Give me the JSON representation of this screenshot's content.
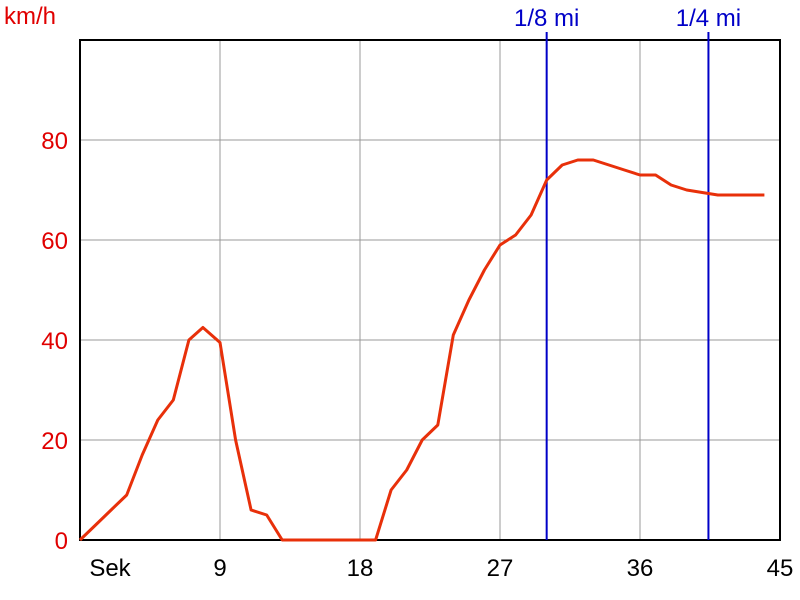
{
  "chart_data": {
    "type": "line",
    "ylabel": "km/h",
    "xlabel": "Sek",
    "xlim": [
      0,
      45
    ],
    "ylim": [
      0,
      100
    ],
    "x_ticks": [
      9,
      18,
      27,
      36,
      45
    ],
    "y_ticks": [
      0,
      20,
      40,
      60,
      80
    ],
    "grid": true,
    "colors": {
      "line": "#e8300a",
      "markers": "#0000c8",
      "y_text": "#e00000",
      "grid": "#999999"
    },
    "markers": [
      {
        "label": "1/8 mi",
        "x": 30.0
      },
      {
        "label": "1/4 mi",
        "x": 40.4
      }
    ],
    "series": [
      {
        "x": [
          0,
          1,
          2,
          3,
          4,
          5,
          6,
          7,
          7.9,
          9,
          10,
          11,
          12,
          13,
          14,
          15,
          16,
          17,
          18,
          19,
          20,
          21,
          22,
          23,
          24,
          25,
          26,
          27,
          28,
          29,
          30,
          31,
          32,
          33,
          34,
          35,
          36,
          37,
          38,
          39,
          40,
          41,
          42,
          43,
          44
        ],
        "y": [
          0,
          3,
          6,
          9,
          17,
          24,
          28,
          40,
          42.5,
          39.5,
          20,
          6,
          5,
          0,
          0,
          0,
          0,
          0,
          0,
          0,
          10,
          14,
          20,
          23,
          41,
          48,
          54,
          59,
          61,
          65,
          72,
          75,
          76,
          76,
          75,
          74,
          73,
          73,
          71,
          70,
          69.5,
          69,
          69,
          69,
          69
        ]
      }
    ]
  }
}
